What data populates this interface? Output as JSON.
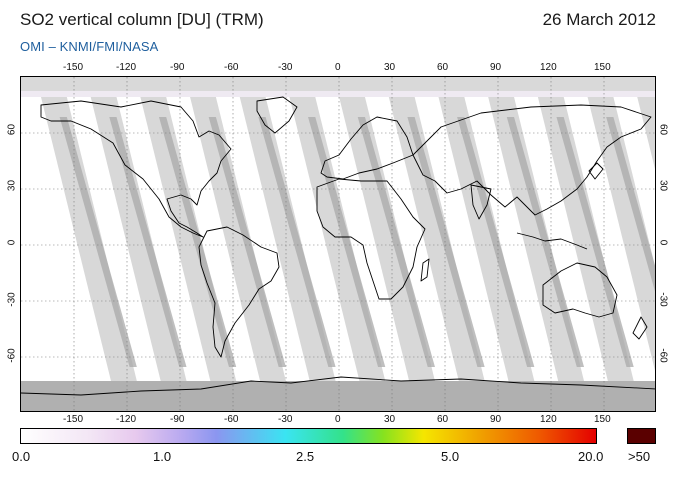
{
  "header": {
    "title": "SO2 vertical column [DU] (TRM)",
    "date": "26 March 2012",
    "subtitle": "OMI  –  KNMI/FMI/NASA"
  },
  "map": {
    "projection": "equirectangular",
    "lon_range": [
      -180,
      180
    ],
    "lat_range": [
      -90,
      90
    ],
    "lon_ticks": [
      "-150",
      "-120",
      "-90",
      "-60",
      "-30",
      "0",
      "30",
      "60",
      "90",
      "120",
      "150"
    ],
    "lat_ticks": [
      "60",
      "30",
      "0",
      "-30",
      "-60"
    ],
    "grid": "dotted",
    "swath_count": 14,
    "colors": {
      "swath_light": "#d8d8d8",
      "swath_dark": "#a9a9a9",
      "missing_data": "#b0b0b0",
      "land_outline": "#000000"
    }
  },
  "legend": {
    "labels": [
      "0.0",
      "1.0",
      "2.5",
      "5.0",
      "20.0",
      ">50"
    ],
    "colors": [
      "#ffffff",
      "#f3e6f5",
      "#e7c9ee",
      "#b8a9f0",
      "#8b96f0",
      "#3ae4f2",
      "#33e28a",
      "#86e21f",
      "#f5e600",
      "#f0a000",
      "#ef5a00",
      "#e40000",
      "#5a0000"
    ]
  }
}
